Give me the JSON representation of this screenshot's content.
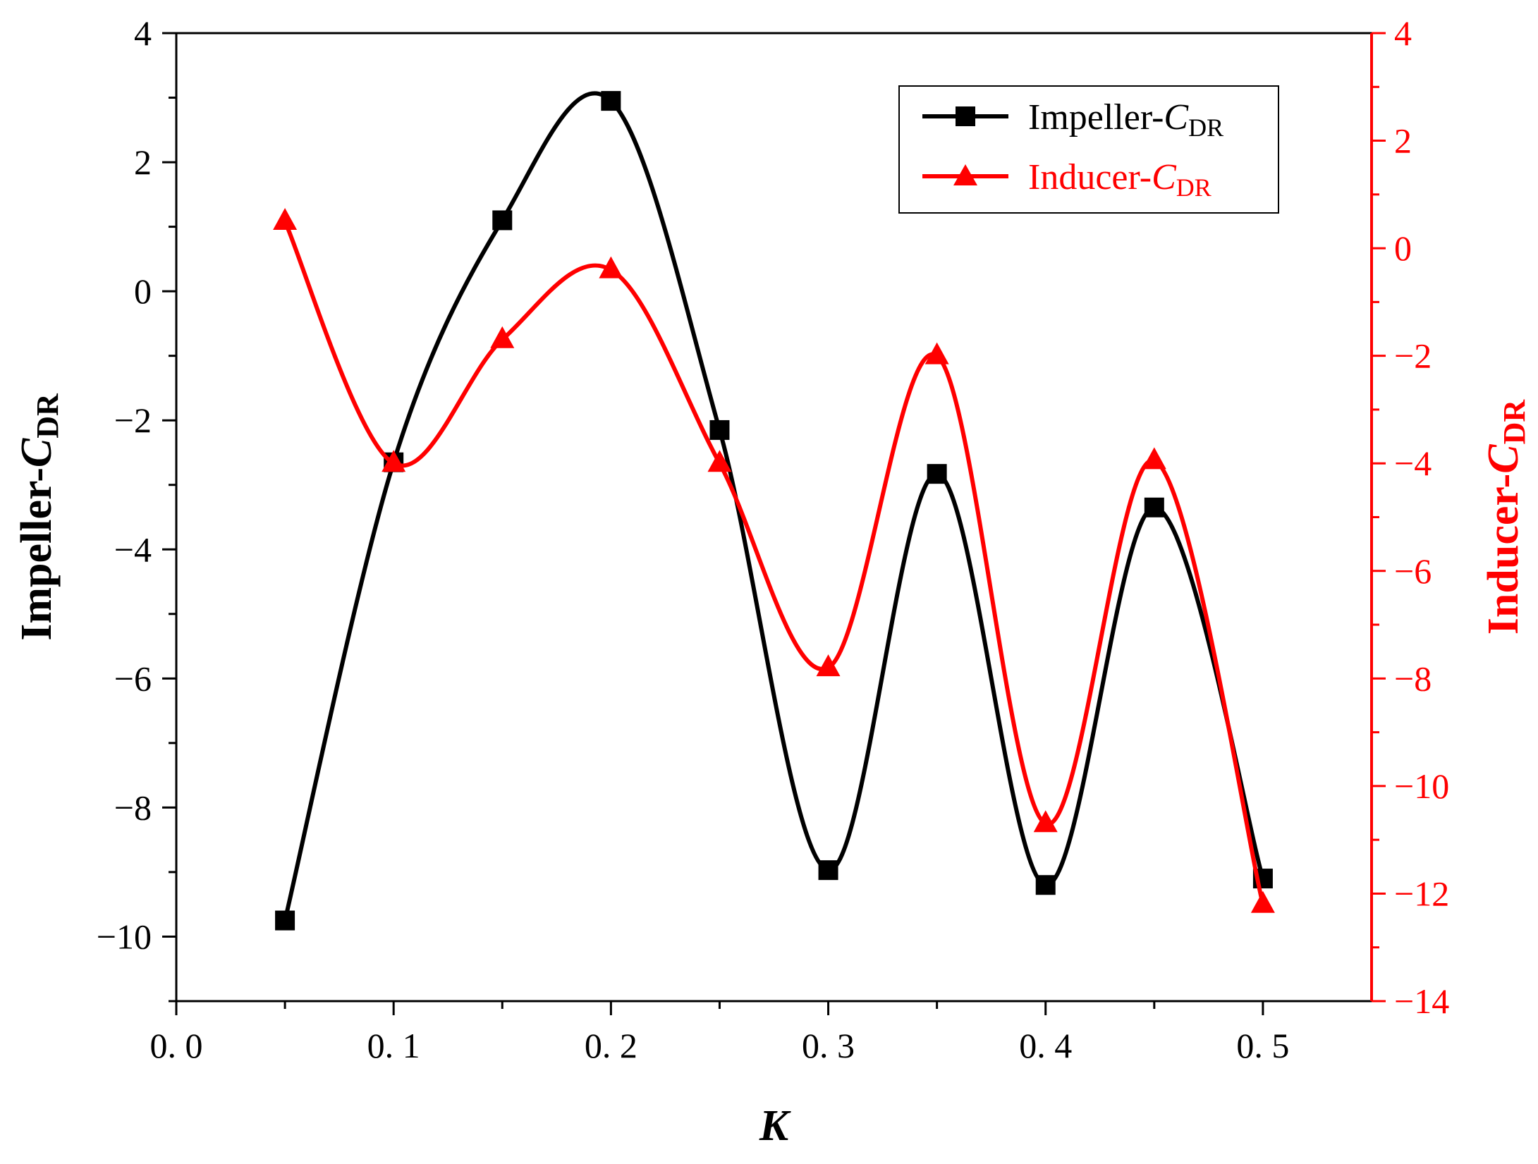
{
  "chart_data": {
    "type": "line",
    "xlabel": "K",
    "ylabel_left": {
      "main": "Impeller-",
      "italic": "C",
      "sub": "DR"
    },
    "ylabel_right": {
      "main": "Inducer-",
      "italic": "C",
      "sub": "DR"
    },
    "xlim": [
      0.0,
      0.55
    ],
    "ylim_left": [
      -11,
      4
    ],
    "ylim_right": [
      -14,
      4
    ],
    "x_ticks": [
      0.0,
      0.1,
      0.2,
      0.3,
      0.4,
      0.5
    ],
    "x_tick_labels": [
      "0. 0",
      "0. 1",
      "0. 2",
      "0. 3",
      "0. 4",
      "0. 5"
    ],
    "y_left_ticks": [
      4,
      2,
      0,
      -2,
      -4,
      -6,
      -8,
      -10
    ],
    "y_left_tick_labels": [
      "4",
      "2",
      "0",
      "−2",
      "−4",
      "−6",
      "−8",
      "−10"
    ],
    "y_right_ticks": [
      4,
      2,
      0,
      -2,
      -4,
      -6,
      -8,
      -10,
      -12,
      -14
    ],
    "y_right_tick_labels": [
      "4",
      "2",
      "0",
      "−2",
      "−4",
      "−6",
      "−8",
      "−10",
      "−12",
      "−14"
    ],
    "legend_position": "top-right",
    "grid": false,
    "series": [
      {
        "name": {
          "main": "Impeller-",
          "italic": "C",
          "sub": "DR"
        },
        "axis": "left",
        "color": "#000000",
        "marker": "square",
        "x": [
          0.05,
          0.1,
          0.15,
          0.2,
          0.25,
          0.3,
          0.35,
          0.4,
          0.45,
          0.5
        ],
        "y": [
          -9.75,
          -2.65,
          1.1,
          2.95,
          -2.15,
          -8.97,
          -2.83,
          -9.2,
          -3.35,
          -9.1
        ]
      },
      {
        "name": {
          "main": "Inducer-",
          "italic": "C",
          "sub": "DR"
        },
        "axis": "right",
        "color": "#ff0000",
        "marker": "triangle",
        "x": [
          0.05,
          0.1,
          0.15,
          0.2,
          0.25,
          0.3,
          0.35,
          0.4,
          0.45,
          0.5
        ],
        "y": [
          0.5,
          -4.0,
          -1.7,
          -0.4,
          -4.0,
          -7.8,
          -2.0,
          -10.7,
          -3.95,
          -12.2
        ]
      }
    ]
  }
}
